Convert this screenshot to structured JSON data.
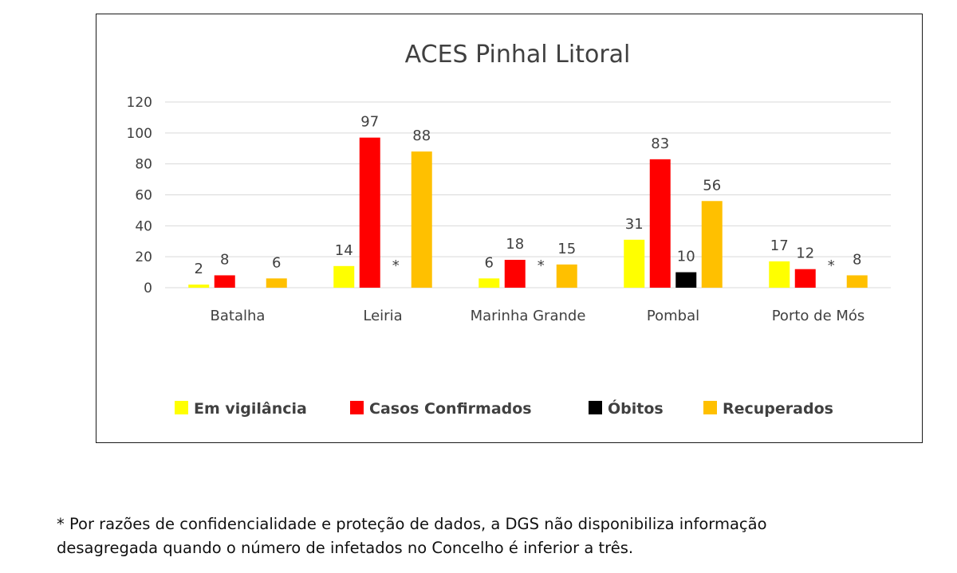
{
  "chart_data": {
    "type": "bar",
    "title": "ACES Pinhal Litoral",
    "categories": [
      "Batalha",
      "Leiria",
      "Marinha Grande",
      "Pombal",
      "Porto de Mós"
    ],
    "series": [
      {
        "name": "Em vigilância",
        "color": "#ffff00",
        "values": [
          2,
          14,
          6,
          31,
          17
        ],
        "labels": [
          "2",
          "14",
          "6",
          "31",
          "17"
        ]
      },
      {
        "name": "Casos Confirmados",
        "color": "#ff0000",
        "values": [
          8,
          97,
          18,
          83,
          12
        ],
        "labels": [
          "8",
          "97",
          "18",
          "83",
          "12"
        ]
      },
      {
        "name": "Óbitos",
        "color": "#000000",
        "values": [
          null,
          null,
          null,
          10,
          null
        ],
        "labels": [
          "",
          "*",
          "*",
          "10",
          "*"
        ]
      },
      {
        "name": "Recuperados",
        "color": "#ffc000",
        "values": [
          6,
          88,
          15,
          56,
          8
        ],
        "labels": [
          "6",
          "88",
          "15",
          "56",
          "8"
        ]
      }
    ],
    "yticks": [
      "0",
      "20",
      "40",
      "60",
      "80",
      "100",
      "120"
    ],
    "ylim": [
      0,
      120
    ],
    "grid": true,
    "legend_position": "bottom"
  },
  "footnote": {
    "line1": "* Por razões de confidencialidade e proteção de dados, a DGS não disponibiliza informação",
    "line2": "desagregada quando o número de infetados no Concelho é inferior a três."
  }
}
